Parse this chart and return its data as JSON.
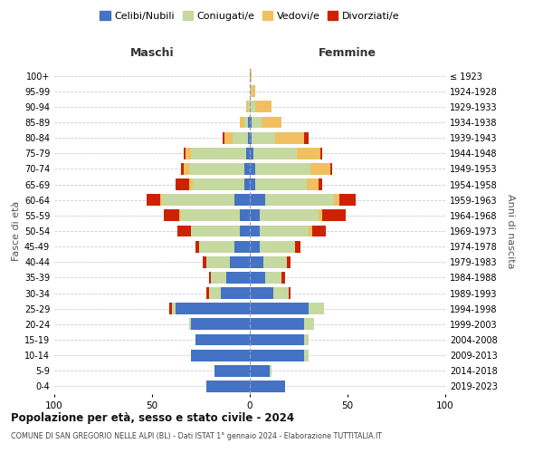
{
  "age_groups": [
    "0-4",
    "5-9",
    "10-14",
    "15-19",
    "20-24",
    "25-29",
    "30-34",
    "35-39",
    "40-44",
    "45-49",
    "50-54",
    "55-59",
    "60-64",
    "65-69",
    "70-74",
    "75-79",
    "80-84",
    "85-89",
    "90-94",
    "95-99",
    "100+"
  ],
  "birth_years": [
    "2019-2023",
    "2014-2018",
    "2009-2013",
    "2004-2008",
    "1999-2003",
    "1994-1998",
    "1989-1993",
    "1984-1988",
    "1979-1983",
    "1974-1978",
    "1969-1973",
    "1964-1968",
    "1959-1963",
    "1954-1958",
    "1949-1953",
    "1944-1948",
    "1939-1943",
    "1934-1938",
    "1929-1933",
    "1924-1928",
    "≤ 1923"
  ],
  "colors": {
    "celibi": "#4472C4",
    "coniugati": "#c5d9a0",
    "vedovi": "#f0c060",
    "divorziati": "#cc2200"
  },
  "maschi": {
    "celibi": [
      22,
      18,
      30,
      28,
      30,
      38,
      15,
      12,
      10,
      8,
      5,
      5,
      8,
      3,
      3,
      2,
      1,
      1,
      0,
      0,
      0
    ],
    "coniugati": [
      0,
      0,
      0,
      0,
      1,
      2,
      6,
      8,
      12,
      18,
      25,
      30,
      37,
      26,
      28,
      28,
      8,
      2,
      1,
      0,
      0
    ],
    "vedovi": [
      0,
      0,
      0,
      0,
      0,
      0,
      0,
      0,
      0,
      0,
      0,
      1,
      1,
      2,
      3,
      3,
      4,
      2,
      1,
      0,
      0
    ],
    "divorziati": [
      0,
      0,
      0,
      0,
      0,
      1,
      1,
      1,
      2,
      2,
      7,
      8,
      7,
      7,
      1,
      1,
      1,
      0,
      0,
      0,
      0
    ]
  },
  "femmine": {
    "celibi": [
      18,
      10,
      28,
      28,
      28,
      30,
      12,
      8,
      7,
      5,
      5,
      5,
      8,
      3,
      3,
      2,
      1,
      1,
      0,
      0,
      0
    ],
    "coniugati": [
      0,
      1,
      2,
      2,
      5,
      8,
      8,
      8,
      12,
      18,
      25,
      30,
      35,
      26,
      28,
      22,
      12,
      5,
      3,
      1,
      0
    ],
    "vedovi": [
      0,
      0,
      0,
      0,
      0,
      0,
      0,
      0,
      0,
      0,
      2,
      2,
      3,
      6,
      10,
      12,
      15,
      10,
      8,
      2,
      1
    ],
    "divorziati": [
      0,
      0,
      0,
      0,
      0,
      0,
      1,
      2,
      2,
      3,
      7,
      12,
      8,
      2,
      1,
      1,
      2,
      0,
      0,
      0,
      0
    ]
  },
  "title": "Popolazione per età, sesso e stato civile - 2024",
  "subtitle": "COMUNE DI SAN GREGORIO NELLE ALPI (BL) - Dati ISTAT 1° gennaio 2024 - Elaborazione TUTTITALIA.IT",
  "xlabel_left": "Maschi",
  "xlabel_right": "Femmine",
  "ylabel_left": "Fasce di età",
  "ylabel_right": "Anni di nascita",
  "xlim": 100,
  "legend_labels": [
    "Celibi/Nubili",
    "Coniugati/e",
    "Vedovi/e",
    "Divorziati/e"
  ]
}
